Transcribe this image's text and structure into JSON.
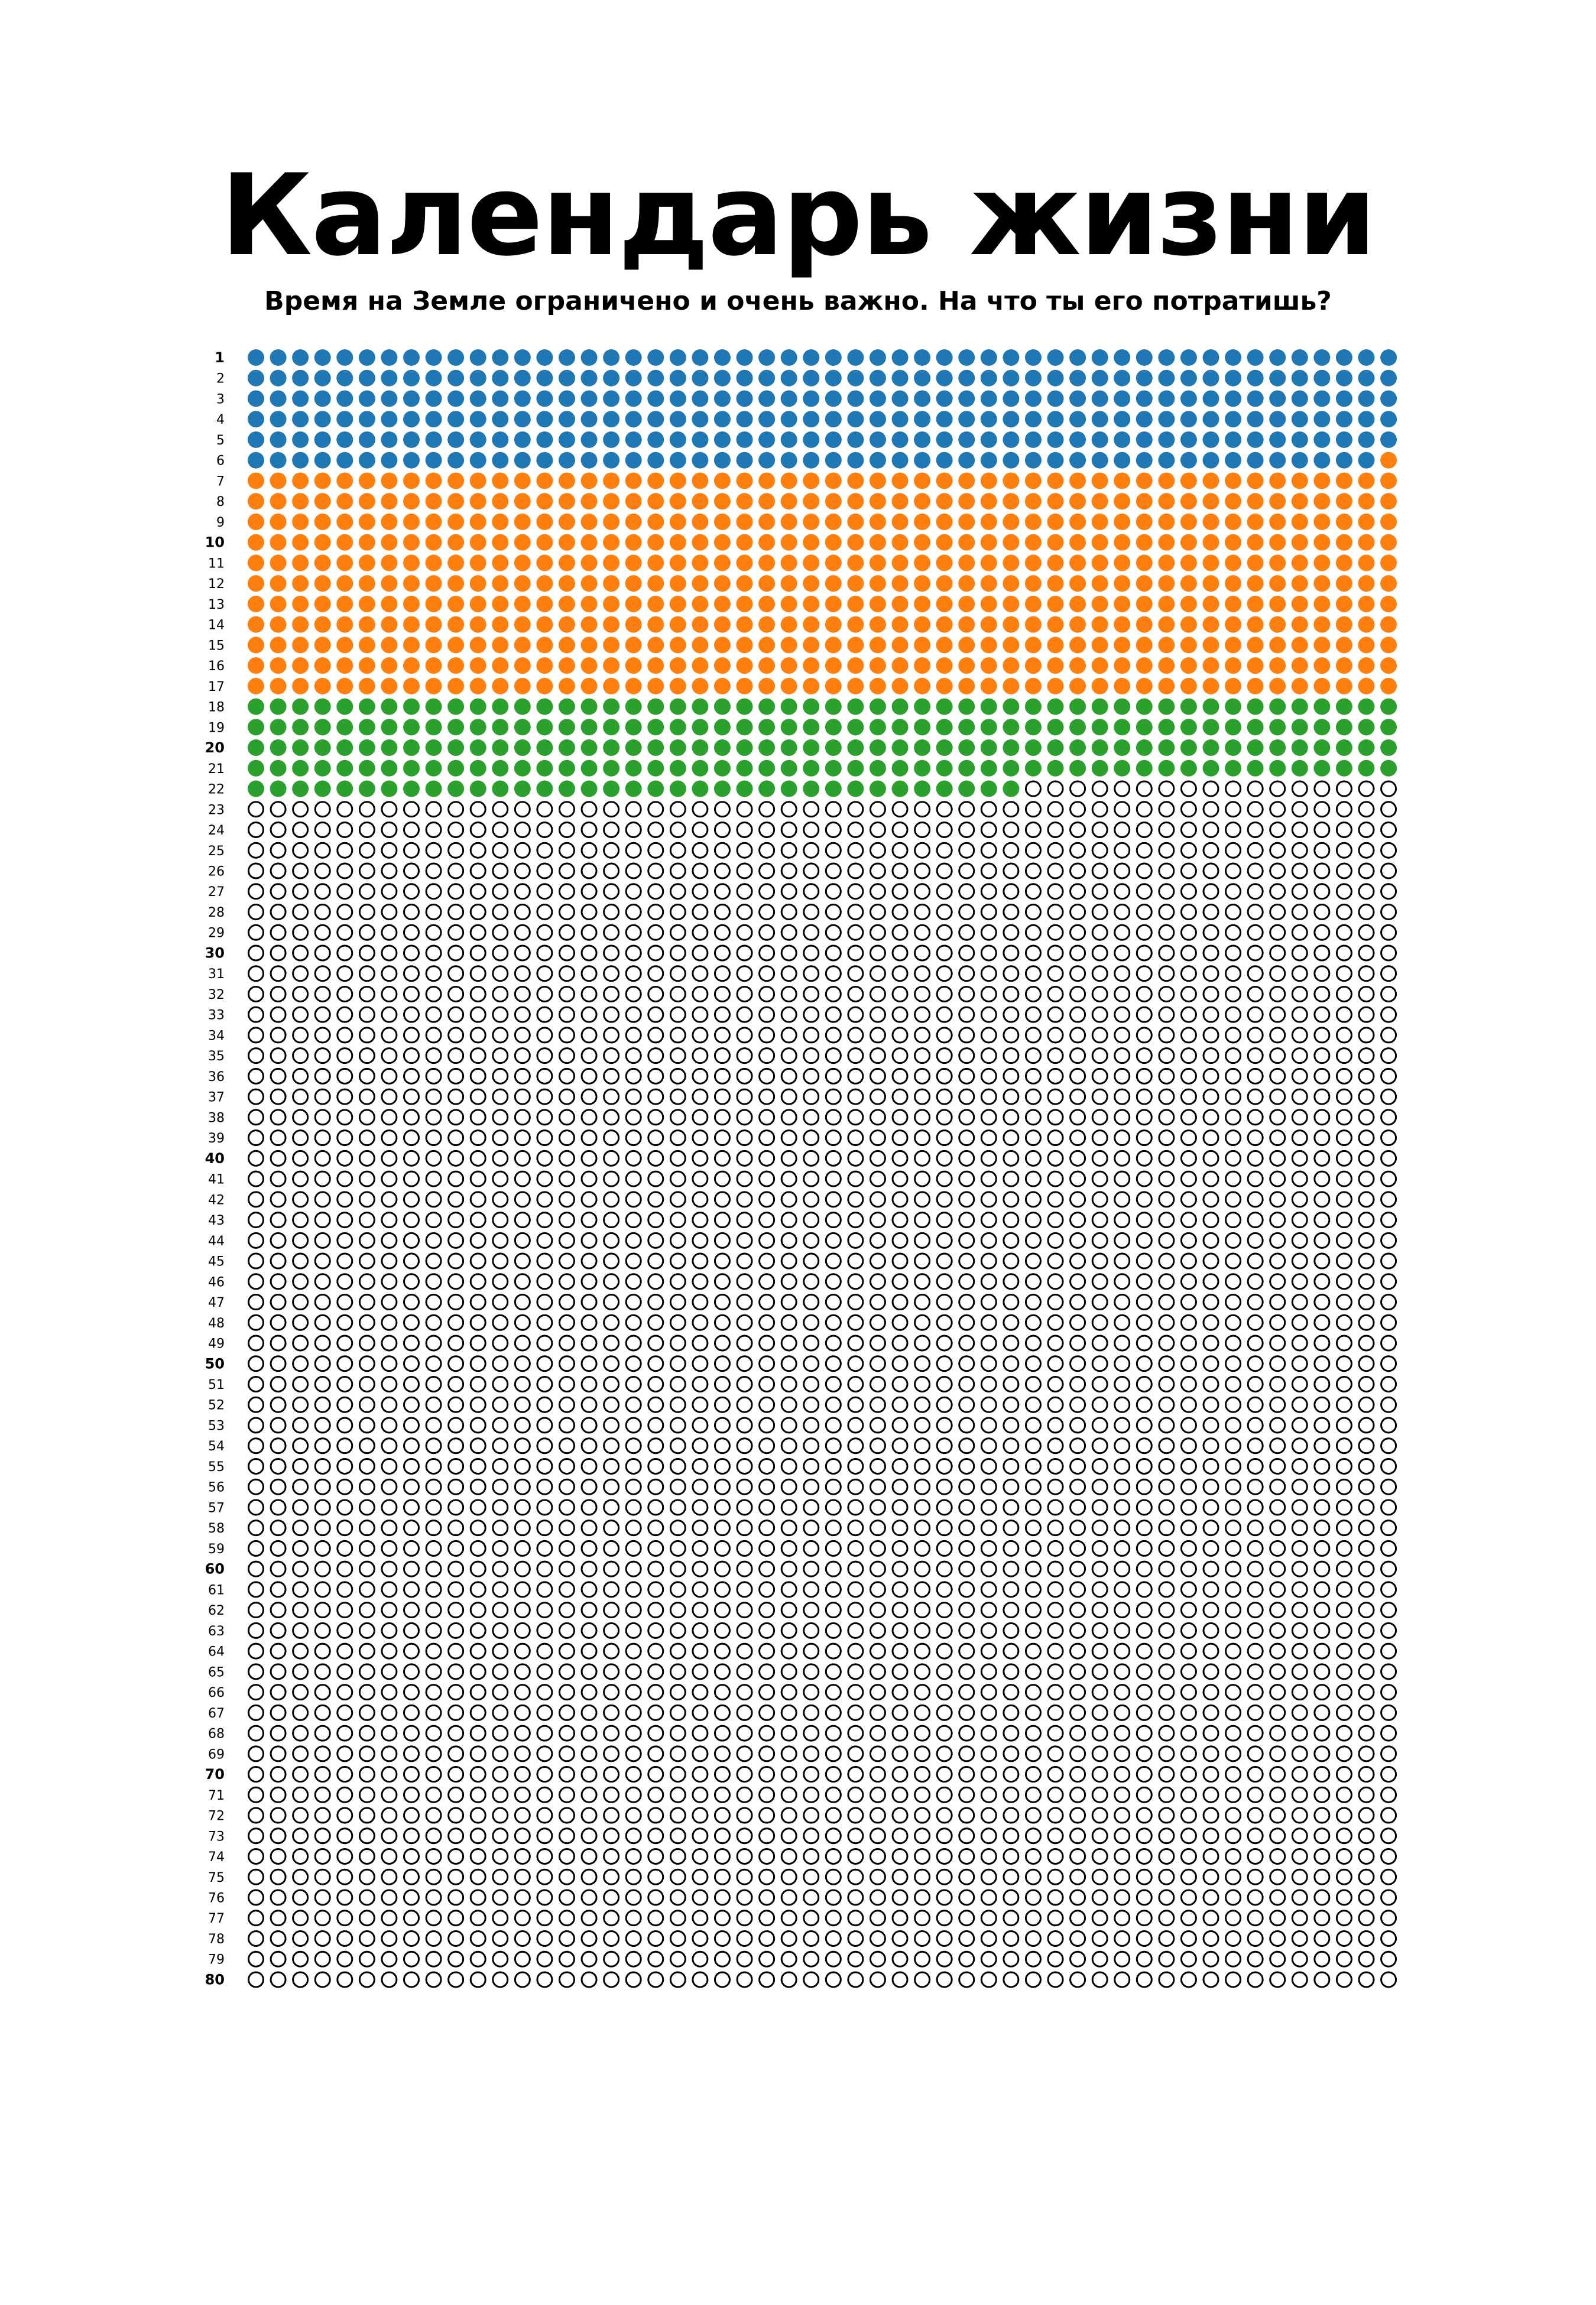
{
  "header": {
    "title": "Календарь жизни",
    "subtitle": "Время на Земле ограничено и очень важно. На что ты его потратишь?"
  },
  "chart_data": {
    "type": "waffle",
    "rows": 80,
    "weeks_per_row": 52,
    "row_labels": [
      "1",
      "2",
      "3",
      "4",
      "5",
      "6",
      "7",
      "8",
      "9",
      "10",
      "11",
      "12",
      "13",
      "14",
      "15",
      "16",
      "17",
      "18",
      "19",
      "20",
      "21",
      "22",
      "23",
      "24",
      "25",
      "26",
      "27",
      "28",
      "29",
      "30",
      "31",
      "32",
      "33",
      "34",
      "35",
      "36",
      "37",
      "38",
      "39",
      "40",
      "41",
      "42",
      "43",
      "44",
      "45",
      "46",
      "47",
      "48",
      "49",
      "50",
      "51",
      "52",
      "53",
      "54",
      "55",
      "56",
      "57",
      "58",
      "59",
      "60",
      "61",
      "62",
      "63",
      "64",
      "65",
      "66",
      "67",
      "68",
      "69",
      "70",
      "71",
      "72",
      "73",
      "74",
      "75",
      "76",
      "77",
      "78",
      "79",
      "80"
    ],
    "bold_labels": [
      "1",
      "10",
      "20",
      "30",
      "40",
      "50",
      "60",
      "70",
      "80"
    ],
    "segments": [
      {
        "color": "#1f77b4",
        "weeks": 311
      },
      {
        "color": "#ff7f0e",
        "weeks": 573
      },
      {
        "color": "#2ca02c",
        "weeks": 243
      }
    ],
    "empty_color": "#ffffff",
    "outline_color": "#000000"
  }
}
